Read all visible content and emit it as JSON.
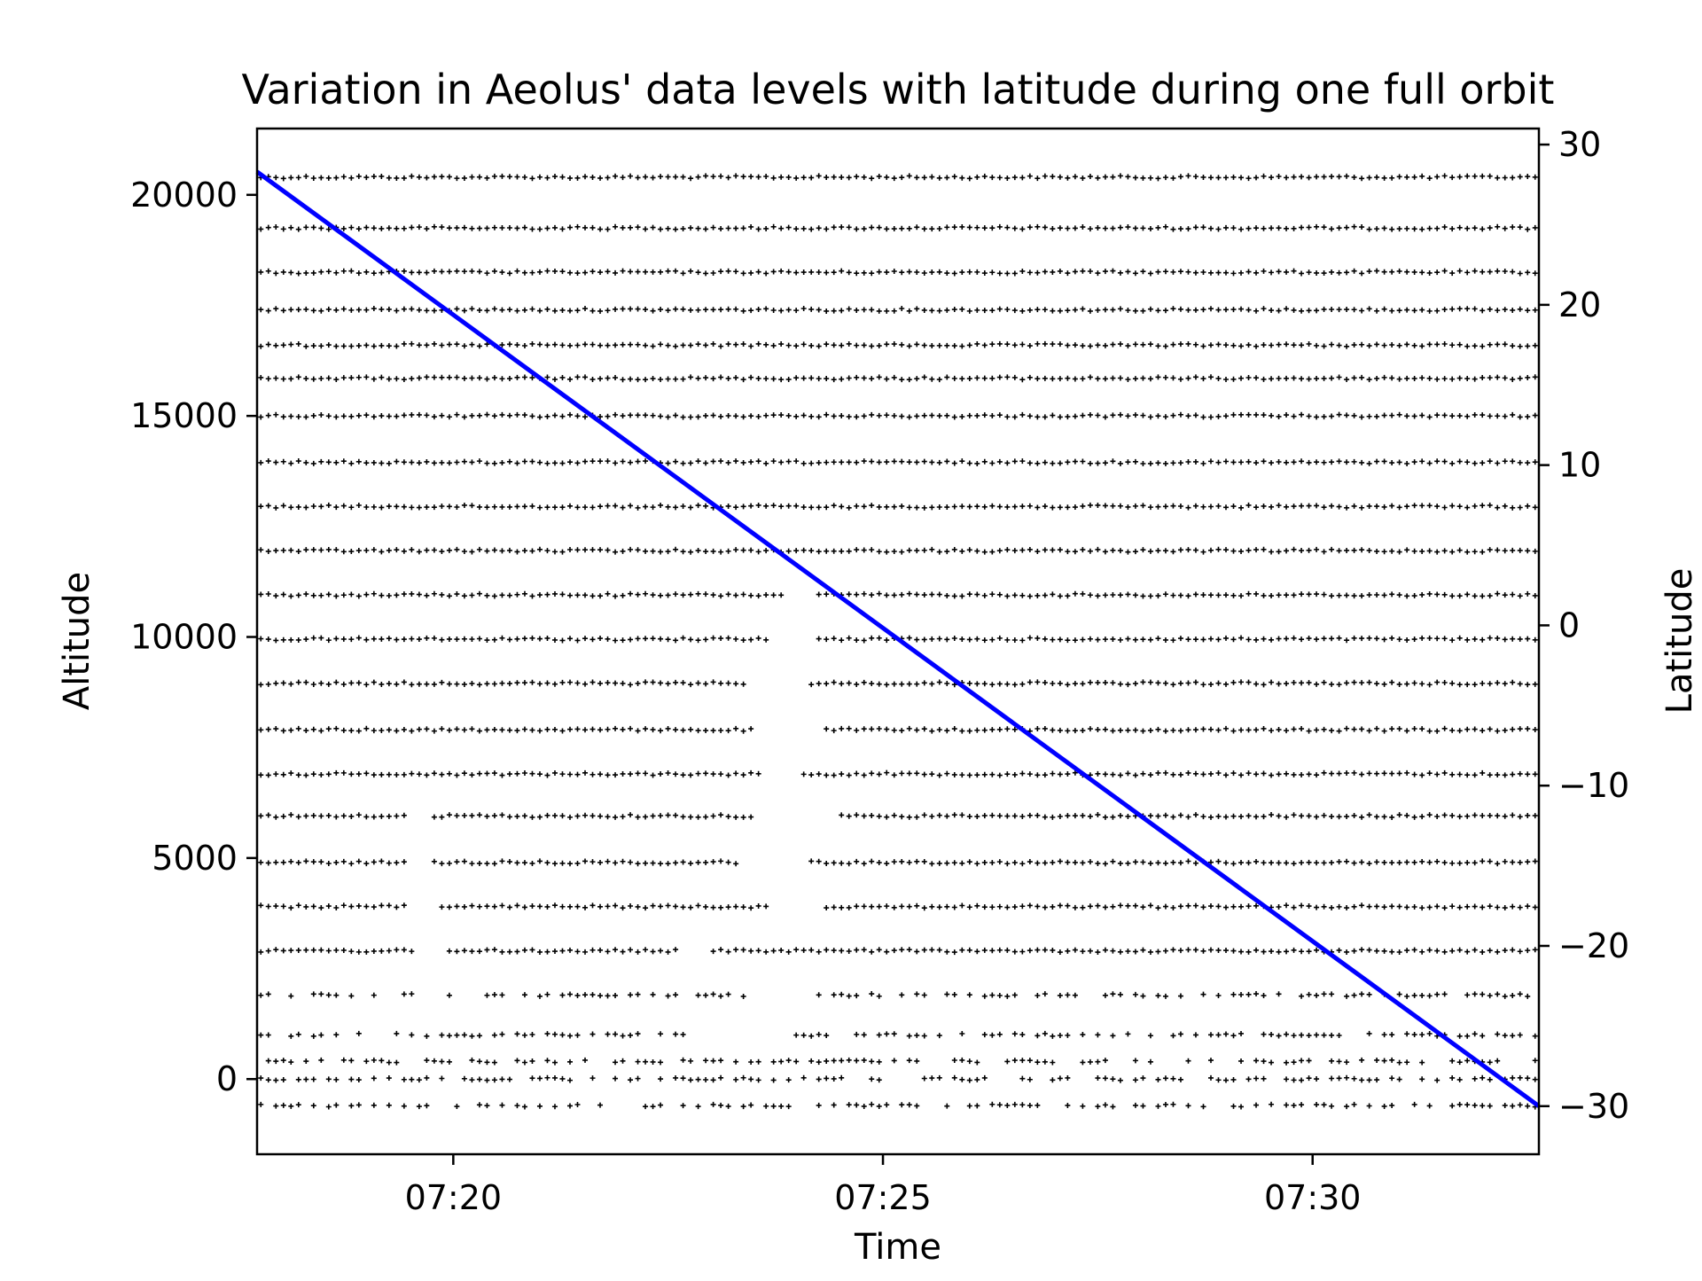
{
  "chart_data": {
    "type": "scatter",
    "title": "Variation in Aeolus' data levels with latitude during one full orbit",
    "xlabel": "Time",
    "ylabel": "Altitude",
    "y2label": "Latitude",
    "x_range": [
      "07:17:43",
      "07:32:38"
    ],
    "xticks": [
      "07:20",
      "07:25",
      "07:30"
    ],
    "ylim": [
      -1700,
      21500
    ],
    "yticks": [
      0,
      5000,
      10000,
      15000,
      20000
    ],
    "y2lim": [
      -33,
      31
    ],
    "y2ticks": [
      30,
      20,
      10,
      0,
      -10,
      -20,
      -30
    ],
    "y2tick_labels": [
      "30",
      "20",
      "10",
      "0",
      "−10",
      "−20",
      "−30"
    ],
    "grid": false,
    "series": [
      {
        "axis": "left",
        "marker": "+",
        "color": "#000000",
        "points_per_level": 170,
        "altitude_levels": [
          {
            "altitude": 20400,
            "gaps": []
          },
          {
            "altitude": 19250,
            "gaps": []
          },
          {
            "altitude": 18250,
            "gaps": []
          },
          {
            "altitude": 17400,
            "gaps": []
          },
          {
            "altitude": 16600,
            "gaps": []
          },
          {
            "altitude": 15850,
            "gaps": []
          },
          {
            "altitude": 15000,
            "gaps": []
          },
          {
            "altitude": 13950,
            "gaps": []
          },
          {
            "altitude": 12950,
            "gaps": []
          },
          {
            "altitude": 11950,
            "gaps": []
          },
          {
            "altitude": 10950,
            "gaps": [
              [
                "07:23:50",
                "07:24:10"
              ]
            ]
          },
          {
            "altitude": 9950,
            "gaps": [
              [
                "07:23:40",
                "07:24:10"
              ]
            ]
          },
          {
            "altitude": 8950,
            "gaps": [
              [
                "07:23:25",
                "07:24:05"
              ]
            ]
          },
          {
            "altitude": 7900,
            "gaps": [
              [
                "07:23:30",
                "07:24:20"
              ]
            ]
          },
          {
            "altitude": 6900,
            "gaps": [
              [
                "07:23:35",
                "07:24:00"
              ]
            ]
          },
          {
            "altitude": 5950,
            "gaps": [
              [
                "07:19:30",
                "07:19:45"
              ],
              [
                "07:23:30",
                "07:24:30"
              ]
            ]
          },
          {
            "altitude": 4900,
            "gaps": [
              [
                "07:19:30",
                "07:19:45"
              ],
              [
                "07:23:20",
                "07:24:05"
              ]
            ]
          },
          {
            "altitude": 3900,
            "gaps": [
              [
                "07:19:30",
                "07:19:50"
              ],
              [
                "07:23:40",
                "07:24:20"
              ]
            ]
          },
          {
            "altitude": 2900,
            "gaps": [
              [
                "07:19:35",
                "07:19:55"
              ],
              [
                "07:22:40",
                "07:23:00"
              ]
            ]
          },
          {
            "altitude": 1900,
            "gaps": [
              [
                "07:19:35",
                "07:19:55"
              ],
              [
                "07:23:30",
                "07:24:00"
              ]
            ]
          },
          {
            "altitude": 1000,
            "gaps": [
              [
                "07:22:50",
                "07:23:50"
              ]
            ]
          },
          {
            "altitude": 400,
            "gaps": []
          },
          {
            "altitude": 0,
            "gaps": []
          },
          {
            "altitude": -600,
            "gaps": []
          }
        ]
      },
      {
        "axis": "right",
        "type": "line",
        "color": "#0000ff",
        "x": [
          "07:17:43",
          "07:32:38"
        ],
        "y": [
          28.3,
          -30.0
        ]
      }
    ]
  }
}
